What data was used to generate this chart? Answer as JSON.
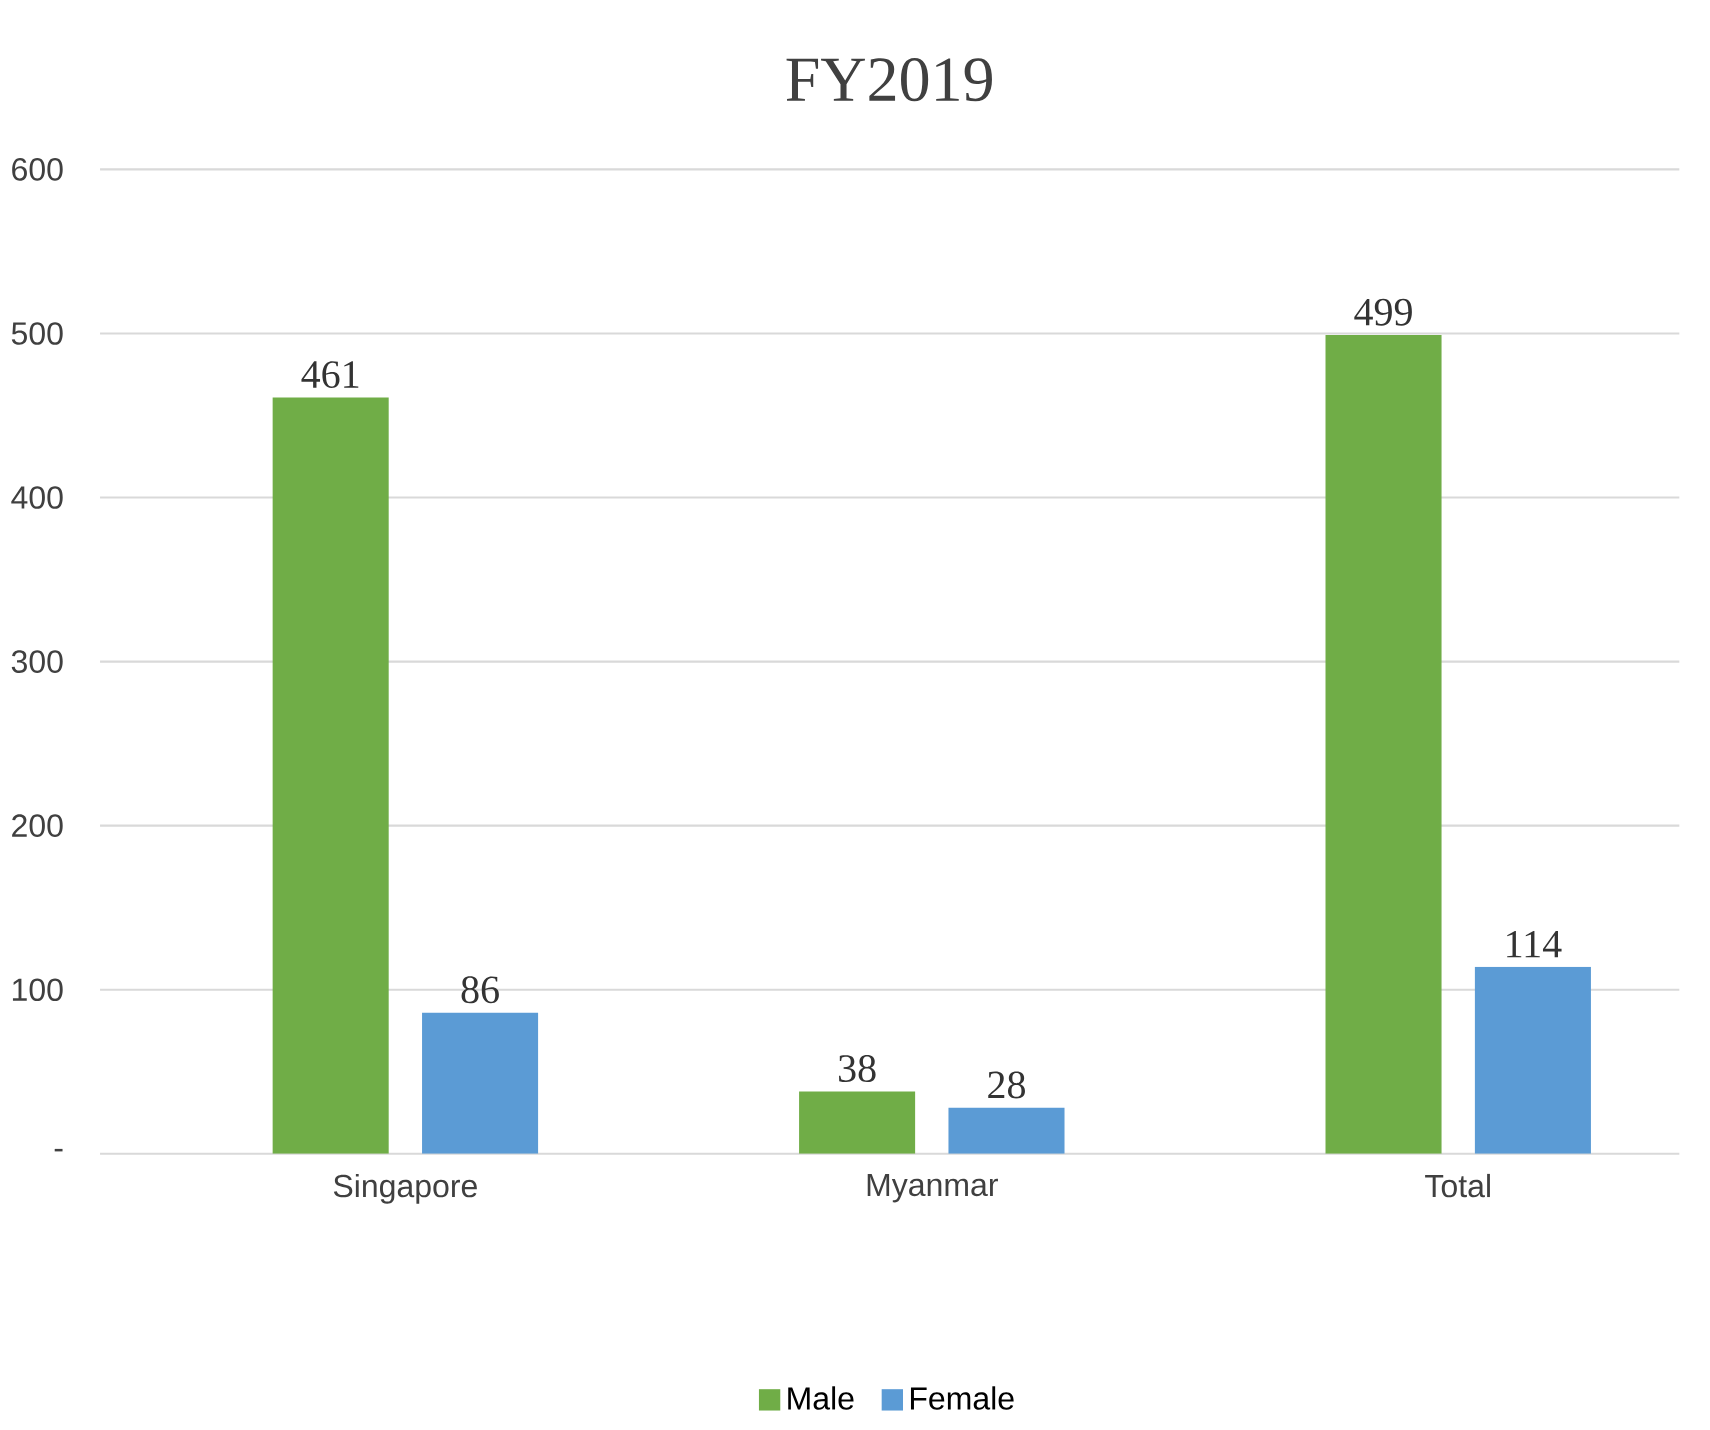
{
  "chart_data": {
    "type": "bar",
    "title": "FY2019",
    "categories": [
      "Singapore",
      "Myanmar",
      "Total"
    ],
    "series": [
      {
        "name": "Male",
        "color": "#70ad47",
        "values": [
          461,
          38,
          499
        ]
      },
      {
        "name": "Female",
        "color": "#5b9bd5",
        "values": [
          86,
          28,
          114
        ]
      }
    ],
    "ylim": [
      0,
      600
    ],
    "yticks": [
      {
        "value": 0,
        "label": "-"
      },
      100,
      200,
      300,
      400,
      500,
      600
    ],
    "grid": "y",
    "legend": "bottom",
    "data_labels": true
  }
}
